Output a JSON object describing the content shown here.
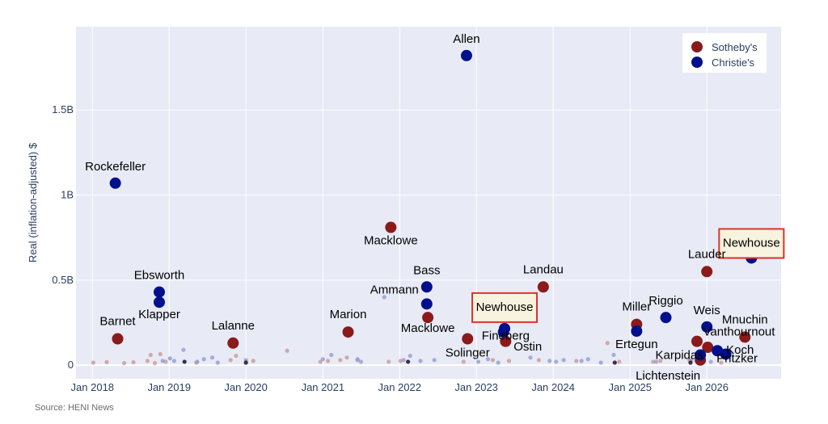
{
  "source": "Source: HENI News",
  "chart_data": {
    "type": "scatter",
    "title": "",
    "xlabel": "",
    "ylabel": "Real (inflation-adjusted) $",
    "xlim": [
      "2017-10-15",
      "2026-12-20"
    ],
    "ylim": [
      -0.08,
      1.99
    ],
    "x_ticks": [
      "Jan 2018",
      "Jan 2019",
      "Jan 2020",
      "Jan 2021",
      "Jan 2022",
      "Jan 2023",
      "Jan 2024",
      "Jan 2025",
      "Jan 2026"
    ],
    "x_tick_dates": [
      "2018-01-01",
      "2019-01-01",
      "2020-01-01",
      "2021-01-01",
      "2022-01-01",
      "2023-01-01",
      "2024-01-01",
      "2025-01-01",
      "2026-01-01"
    ],
    "y_ticks": [
      0,
      0.5,
      1,
      1.5
    ],
    "y_tick_labels": [
      "0",
      "0.5B",
      "1B",
      "1.5B"
    ],
    "y_unit_note": "values in billions of dollars",
    "grid": true,
    "legend_position": "top-right",
    "colors": {
      "sothebys": "#8b1a1a",
      "christies": "#00108c",
      "sothebys_small": "#c9938e",
      "christies_small": "#8f96d4",
      "plot_bg": "#e8ebf6",
      "highlight_fill": "#f7f3de",
      "highlight_border": "#d9342b"
    },
    "series": [
      {
        "name": "Sotheby's",
        "color": "#8b1a1a",
        "points": [
          {
            "x": "2018-05-01",
            "y": 0.155,
            "label": "Barnet"
          },
          {
            "x": "2019-11-01",
            "y": 0.13,
            "label": "Lalanne"
          },
          {
            "x": "2021-05-01",
            "y": 0.195,
            "label": "Marion"
          },
          {
            "x": "2021-11-20",
            "y": 0.81,
            "label": "Macklowe"
          },
          {
            "x": "2022-05-15",
            "y": 0.28,
            "label": "Macklowe"
          },
          {
            "x": "2022-11-20",
            "y": 0.155,
            "label": "Solinger"
          },
          {
            "x": "2023-05-20",
            "y": 0.14,
            "label": "Fineberg"
          },
          {
            "x": "2023-11-15",
            "y": 0.46,
            "label": "Landau"
          },
          {
            "x": "2025-02-01",
            "y": 0.24,
            "label": "Miller"
          },
          {
            "x": "2025-11-15",
            "y": 0.14,
            "label": "Vanthournout"
          },
          {
            "x": "2025-12-01",
            "y": 0.03,
            "label": "Lichtenstein"
          },
          {
            "x": "2026-01-01",
            "y": 0.55,
            "label": "Lauder"
          },
          {
            "x": "2026-01-05",
            "y": 0.105,
            "label": ""
          },
          {
            "x": "2026-07-01",
            "y": 0.165,
            "label": "Mnuchin"
          }
        ]
      },
      {
        "name": "Christie's",
        "color": "#00108c",
        "points": [
          {
            "x": "2018-04-20",
            "y": 1.07,
            "label": "Rockefeller"
          },
          {
            "x": "2018-11-15",
            "y": 0.43,
            "label": "Ebsworth"
          },
          {
            "x": "2018-11-15",
            "y": 0.37,
            "label": "Klapper"
          },
          {
            "x": "2022-05-10",
            "y": 0.46,
            "label": "Bass"
          },
          {
            "x": "2022-05-10",
            "y": 0.36,
            "label": "Ammann"
          },
          {
            "x": "2022-11-15",
            "y": 1.82,
            "label": "Allen"
          },
          {
            "x": "2023-05-15",
            "y": 0.215,
            "label": "Newhouse",
            "highlight": true
          },
          {
            "x": "2023-05-10",
            "y": 0.195,
            "label": "Ostin"
          },
          {
            "x": "2025-02-01",
            "y": 0.2,
            "label": "Ertegun"
          },
          {
            "x": "2025-06-20",
            "y": 0.28,
            "label": "Riggio"
          },
          {
            "x": "2025-12-01",
            "y": 0.06,
            "label": "Karpidas"
          },
          {
            "x": "2026-01-01",
            "y": 0.225,
            "label": "Weis"
          },
          {
            "x": "2026-02-20",
            "y": 0.085,
            "label": "Koch"
          },
          {
            "x": "2026-04-01",
            "y": 0.065,
            "label": "Pritzker"
          },
          {
            "x": "2026-08-01",
            "y": 0.63,
            "label": "Newhouse",
            "highlight": true
          }
        ]
      }
    ],
    "minor_points": {
      "sothebys": [
        [
          "2018-01-05",
          0.015
        ],
        [
          "2018-03-10",
          0.018
        ],
        [
          "2018-06-01",
          0.012
        ],
        [
          "2018-07-15",
          0.017
        ],
        [
          "2018-09-20",
          0.025
        ],
        [
          "2018-10-05",
          0.06
        ],
        [
          "2018-10-25",
          0.012
        ],
        [
          "2018-11-20",
          0.065
        ],
        [
          "2018-12-15",
          0.02
        ],
        [
          "2019-05-10",
          0.015
        ],
        [
          "2019-10-20",
          0.03
        ],
        [
          "2019-11-15",
          0.055
        ],
        [
          "2020-02-05",
          0.025
        ],
        [
          "2020-07-15",
          0.085
        ],
        [
          "2020-12-20",
          0.02
        ],
        [
          "2021-01-25",
          0.025
        ],
        [
          "2021-03-25",
          0.03
        ],
        [
          "2021-04-25",
          0.045
        ],
        [
          "2021-06-15",
          0.03
        ],
        [
          "2021-11-10",
          0.02
        ],
        [
          "2022-01-05",
          0.025
        ],
        [
          "2022-11-01",
          0.02
        ],
        [
          "2023-03-20",
          0.03
        ],
        [
          "2023-06-05",
          0.025
        ],
        [
          "2023-10-25",
          0.03
        ],
        [
          "2024-04-20",
          0.025
        ],
        [
          "2024-09-15",
          0.13
        ],
        [
          "2024-11-10",
          0.02
        ],
        [
          "2025-04-20",
          0.02
        ],
        [
          "2025-05-25",
          0.025
        ],
        [
          "2025-10-10",
          0.03
        ],
        [
          "2026-03-10",
          0.015
        ]
      ],
      "christies": [
        [
          "2018-12-01",
          0.025
        ],
        [
          "2019-01-05",
          0.04
        ],
        [
          "2019-01-25",
          0.025
        ],
        [
          "2019-03-10",
          0.09
        ],
        [
          "2019-05-15",
          0.02
        ],
        [
          "2019-06-15",
          0.035
        ],
        [
          "2019-07-25",
          0.045
        ],
        [
          "2019-08-20",
          0.015
        ],
        [
          "2020-01-01",
          0.03
        ],
        [
          "2021-01-01",
          0.035
        ],
        [
          "2021-02-10",
          0.06
        ],
        [
          "2021-06-15",
          0.035
        ],
        [
          "2021-07-01",
          0.02
        ],
        [
          "2021-10-20",
          0.4
        ],
        [
          "2022-01-20",
          0.03
        ],
        [
          "2022-02-20",
          0.055
        ],
        [
          "2022-04-10",
          0.025
        ],
        [
          "2022-06-15",
          0.03
        ],
        [
          "2023-01-10",
          0.02
        ],
        [
          "2023-02-25",
          0.035
        ],
        [
          "2023-04-15",
          0.015
        ],
        [
          "2023-09-15",
          0.045
        ],
        [
          "2023-12-15",
          0.025
        ],
        [
          "2024-01-15",
          0.02
        ],
        [
          "2024-02-20",
          0.03
        ],
        [
          "2024-05-15",
          0.025
        ],
        [
          "2024-06-15",
          0.035
        ],
        [
          "2024-08-15",
          0.015
        ],
        [
          "2024-10-15",
          0.06
        ],
        [
          "2025-05-05",
          0.02
        ],
        [
          "2025-10-20",
          0.03
        ],
        [
          "2026-01-20",
          0.02
        ]
      ],
      "dark": [
        [
          "2019-03-15",
          0.02
        ],
        [
          "2020-01-01",
          0.015
        ],
        [
          "2022-02-10",
          0.02
        ],
        [
          "2024-10-20",
          0.015
        ],
        [
          "2025-10-15",
          0.015
        ]
      ]
    }
  }
}
